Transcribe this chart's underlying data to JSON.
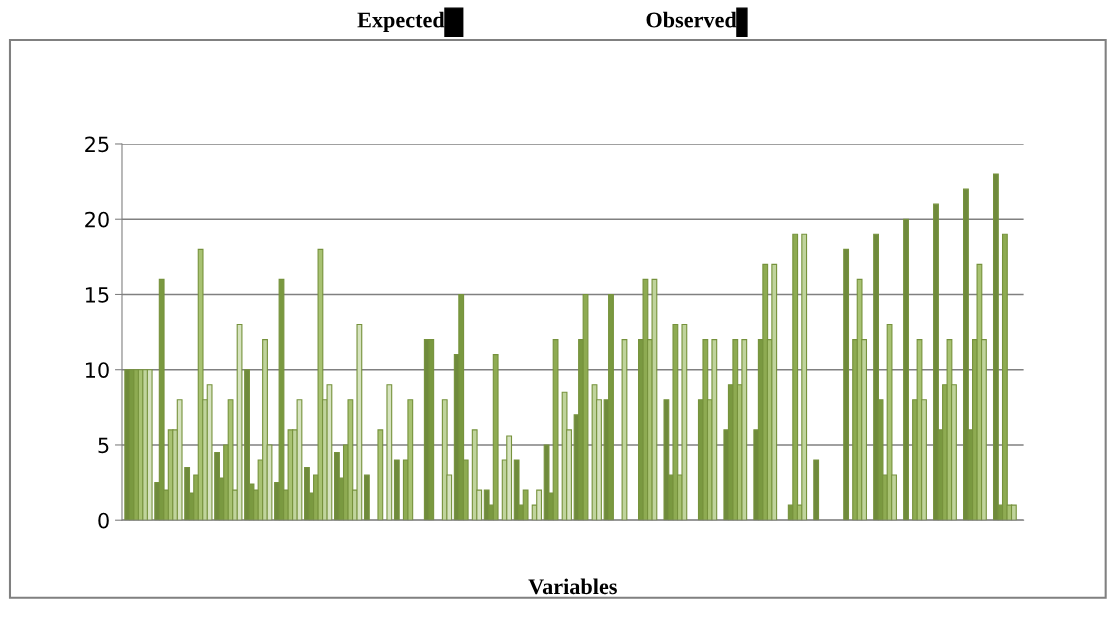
{
  "chart_data": {
    "type": "bar",
    "xlabel": "Variables",
    "annotations": [
      "Expected",
      "Observed"
    ],
    "categories": [
      null,
      null,
      null,
      null,
      null,
      null,
      null,
      null,
      null,
      null,
      null,
      null,
      null,
      null,
      null,
      null,
      null,
      null,
      null,
      null,
      null,
      null,
      null,
      null,
      null,
      null,
      null,
      null,
      null,
      null
    ],
    "series": [
      {
        "color": "#6f8a3c",
        "values": [
          10,
          2.5,
          3.5,
          4.5,
          10,
          2.5,
          3.5,
          4.5,
          3,
          4,
          12,
          11,
          2,
          4,
          5,
          7,
          8,
          null,
          8,
          null,
          6,
          6,
          null,
          4,
          18,
          19,
          20,
          21,
          22,
          23
        ]
      },
      {
        "color": "#7a9940",
        "values": [
          10,
          16,
          1.8,
          2.8,
          2.4,
          16,
          1.8,
          2.8,
          null,
          null,
          12,
          15,
          1,
          1,
          1.8,
          12,
          15,
          12,
          3,
          8,
          9,
          12,
          1,
          null,
          null,
          8,
          null,
          6,
          6,
          1
        ]
      },
      {
        "color": "#8eab52",
        "values": [
          10,
          2,
          3,
          5,
          2,
          2,
          3,
          5,
          null,
          4,
          null,
          4,
          11,
          2,
          12,
          15,
          null,
          16,
          13,
          12,
          12,
          17,
          19,
          null,
          12,
          3,
          8,
          9,
          12,
          19
        ]
      },
      {
        "color": "#a8c272",
        "values": [
          10,
          6,
          18,
          8,
          4,
          6,
          18,
          8,
          6,
          8,
          null,
          null,
          null,
          null,
          null,
          null,
          null,
          12,
          3,
          8,
          9,
          12,
          1,
          null,
          16,
          13,
          12,
          12,
          17,
          1
        ]
      },
      {
        "color": "#c0d49c",
        "values": [
          10,
          6,
          8,
          2,
          12,
          6,
          8,
          2,
          null,
          null,
          8,
          6,
          4,
          1,
          8.5,
          9,
          12,
          16,
          13,
          12,
          12,
          17,
          19,
          null,
          12,
          3,
          8,
          9,
          12,
          1
        ]
      },
      {
        "color": "#d6e3bf",
        "values": [
          10,
          8,
          9,
          13,
          5,
          8,
          9,
          13,
          9,
          null,
          3,
          2,
          5.6,
          2,
          6,
          8,
          null,
          null,
          null,
          null,
          null,
          null,
          null,
          null,
          null,
          null,
          null,
          null,
          null,
          null
        ]
      }
    ],
    "ylim": [
      0,
      25
    ],
    "yticks": [
      0,
      5,
      10,
      15,
      20,
      25
    ],
    "grid": "y"
  }
}
